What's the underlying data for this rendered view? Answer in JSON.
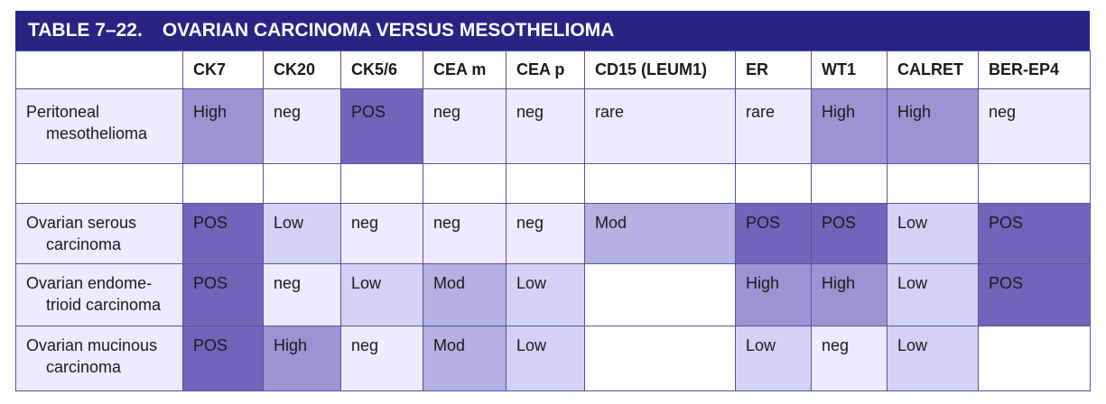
{
  "table": {
    "number": "TABLE 7–22.",
    "title": "OVARIAN CARCINOMA VERSUS MESOTHELIOMA",
    "columns": [
      "CK7",
      "CK20",
      "CK5/6",
      "CEA m",
      "CEA p",
      "CD15 (LEUM1)",
      "ER",
      "WT1",
      "CALRET",
      "BER-EP4"
    ],
    "rows": [
      {
        "label_line1": "Peritoneal",
        "label_line2": "mesothelioma",
        "cells": [
          "High",
          "neg",
          "POS",
          "neg",
          "neg",
          "rare",
          "rare",
          "High",
          "High",
          "neg"
        ]
      },
      {
        "label_line1": "",
        "label_line2": "",
        "cells": [
          "",
          "",
          "",
          "",
          "",
          "",
          "",
          "",
          "",
          ""
        ]
      },
      {
        "label_line1": "Ovarian serous",
        "label_line2": "carcinoma",
        "cells": [
          "POS",
          "Low",
          "neg",
          "neg",
          "neg",
          "Mod",
          "POS",
          "POS",
          "Low",
          "POS"
        ]
      },
      {
        "label_line1": "Ovarian endome-",
        "label_line2": "trioid carcinoma",
        "cells": [
          "POS",
          "neg",
          "Low",
          "Mod",
          "Low",
          "",
          "High",
          "High",
          "Low",
          "POS"
        ]
      },
      {
        "label_line1": "Ovarian mucinous",
        "label_line2": "carcinoma",
        "cells": [
          "POS",
          "High",
          "neg",
          "Mod",
          "Low",
          "",
          "Low",
          "neg",
          "Low",
          ""
        ]
      }
    ]
  },
  "colors": {
    "header_bar": "#2a2384",
    "POS": "#7364bb",
    "High": "#9e92d2",
    "Mod": "#b6b0e3",
    "Low": "#d5d1f6",
    "neg": "#eeeaff",
    "rare": "#eeeaff",
    "blank": "#ffffff"
  }
}
